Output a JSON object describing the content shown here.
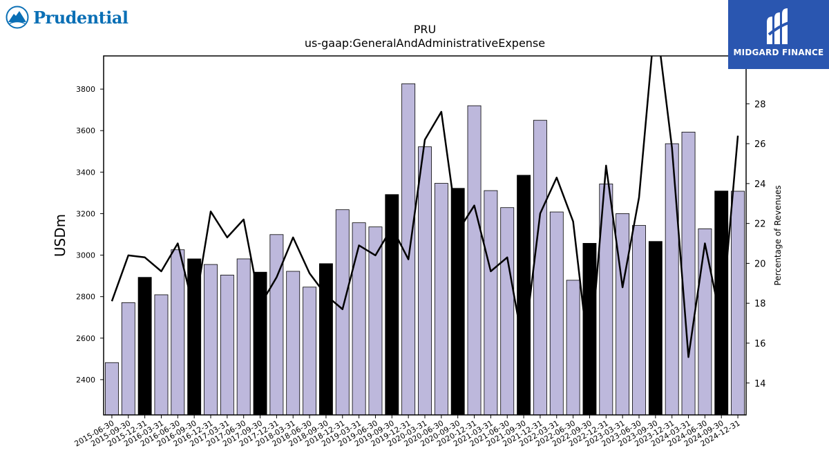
{
  "logos": {
    "left_brand": "Prudential",
    "right_brand": "MIDGARD FINANCE"
  },
  "colors": {
    "bar_normal": "#bdb8dc",
    "bar_highlight": "#000000",
    "line": "#000000",
    "prudential_blue": "#0a6fb5",
    "midgard_bg": "#2a56b0"
  },
  "chart_data": {
    "type": "bar",
    "title": "PRU",
    "subtitle": "us-gaap:GeneralAndAdministrativeExpense",
    "ylabel": "USDm",
    "y2label": "Percentage of Revenues",
    "ylim": [
      2230,
      3960
    ],
    "y2lim": [
      12.4,
      30.4
    ],
    "yticks": [
      2400,
      2600,
      2800,
      3000,
      3200,
      3400,
      3600,
      3800
    ],
    "y2ticks": [
      14,
      16,
      18,
      20,
      22,
      24,
      26,
      28
    ],
    "grid": false,
    "categories": [
      "2015-06-30",
      "2015-09-30",
      "2015-12-31",
      "2016-03-31",
      "2016-06-30",
      "2016-09-30",
      "2016-12-31",
      "2017-03-31",
      "2017-06-30",
      "2017-09-30",
      "2017-12-31",
      "2018-03-31",
      "2018-06-30",
      "2018-09-30",
      "2018-12-31",
      "2019-03-31",
      "2019-06-30",
      "2019-09-30",
      "2019-12-31",
      "2020-03-31",
      "2020-06-30",
      "2020-09-30",
      "2020-12-31",
      "2021-03-31",
      "2021-06-30",
      "2021-09-30",
      "2021-12-31",
      "2022-03-31",
      "2022-06-30",
      "2022-09-30",
      "2022-12-31",
      "2023-03-31",
      "2023-06-30",
      "2023-09-30",
      "2023-12-31",
      "2024-03-31",
      "2024-06-30",
      "2024-09-30",
      "2024-12-31"
    ],
    "series": [
      {
        "type": "bar",
        "values": [
          2482,
          2771,
          2893,
          2809,
          3026,
          2982,
          2955,
          2904,
          2982,
          2918,
          3099,
          2922,
          2846,
          2959,
          3219,
          3156,
          3136,
          3292,
          3826,
          3522,
          3346,
          3322,
          3720,
          3311,
          3229,
          3385,
          3650,
          3208,
          2879,
          3057,
          3343,
          3200,
          3143,
          3066,
          3537,
          3593,
          3127,
          3309,
          3308
        ],
        "highlight": [
          false,
          false,
          true,
          false,
          false,
          true,
          false,
          false,
          false,
          true,
          false,
          false,
          false,
          true,
          false,
          false,
          false,
          true,
          false,
          false,
          false,
          true,
          false,
          false,
          false,
          true,
          false,
          false,
          false,
          true,
          false,
          false,
          false,
          true,
          false,
          false,
          false,
          true,
          false
        ]
      },
      {
        "type": "line",
        "axis": "right",
        "values": [
          18.1,
          20.4,
          20.3,
          19.6,
          21.0,
          17.6,
          22.6,
          21.3,
          22.2,
          17.9,
          19.3,
          21.3,
          19.5,
          18.4,
          17.7,
          20.9,
          20.4,
          21.8,
          20.2,
          26.2,
          27.6,
          21.6,
          22.9,
          19.6,
          20.3,
          15.7,
          22.5,
          24.3,
          22.1,
          15.0,
          24.9,
          18.8,
          23.3,
          32.5,
          25.8,
          15.3,
          21.0,
          17.0,
          26.4
        ]
      }
    ]
  }
}
